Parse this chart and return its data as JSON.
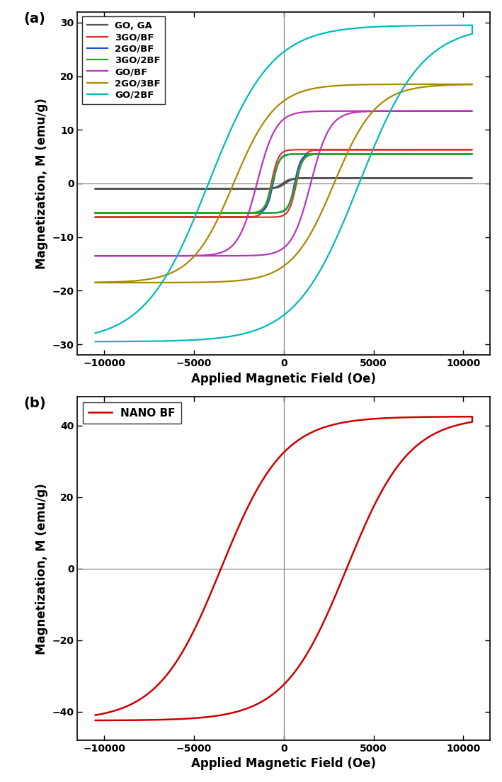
{
  "panel_a": {
    "title": "(a)",
    "xlabel": "Applied Magnetic Field (Oe)",
    "ylabel": "Magnetization, M (emu/g)",
    "xlim": [
      -11500,
      11500
    ],
    "ylim": [
      -32,
      32
    ],
    "yticks": [
      -30,
      -20,
      -10,
      0,
      10,
      20,
      30
    ],
    "xticks": [
      -10000,
      -5000,
      0,
      5000,
      10000
    ],
    "series": [
      {
        "label": "GO, GA",
        "color": "#555555",
        "Ms": 1.0,
        "Hc": 80,
        "steep": 0.06,
        "n_sat": 1.0
      },
      {
        "label": "3GO/BF",
        "color": "#e03030",
        "Ms": 6.3,
        "Hc": 700,
        "steep": 0.55,
        "n_sat": 1.5
      },
      {
        "label": "2GO/BF",
        "color": "#2255cc",
        "Ms": 5.5,
        "Hc": 600,
        "steep": 0.55,
        "n_sat": 1.5
      },
      {
        "label": "3GO/2BF",
        "color": "#22aa22",
        "Ms": 5.5,
        "Hc": 650,
        "steep": 0.5,
        "n_sat": 1.5
      },
      {
        "label": "GO/BF",
        "color": "#bb33bb",
        "Ms": 13.5,
        "Hc": 1500,
        "steep": 0.45,
        "n_sat": 1.5
      },
      {
        "label": "2GO/3BF",
        "color": "#aa8800",
        "Ms": 18.5,
        "Hc": 2800,
        "steep": 0.38,
        "n_sat": 1.5
      },
      {
        "label": "GO/2BF",
        "color": "#00bbbb",
        "Ms": 29.5,
        "Hc": 4200,
        "steep": 0.38,
        "n_sat": 1.5
      }
    ]
  },
  "panel_b": {
    "title": "(b)",
    "xlabel": "Applied Magnetic Field (Oe)",
    "ylabel": "Magnetization, M (emu/g)",
    "xlim": [
      -11500,
      11500
    ],
    "ylim": [
      -48,
      48
    ],
    "yticks": [
      -40,
      -20,
      0,
      20,
      40
    ],
    "xticks": [
      -10000,
      -5000,
      0,
      5000,
      10000
    ],
    "series": [
      {
        "label": "NANO BF",
        "color": "#cc0000",
        "Ms": 42.5,
        "Hc": 3500,
        "steep": 0.32,
        "n_sat": 1.5
      }
    ]
  }
}
